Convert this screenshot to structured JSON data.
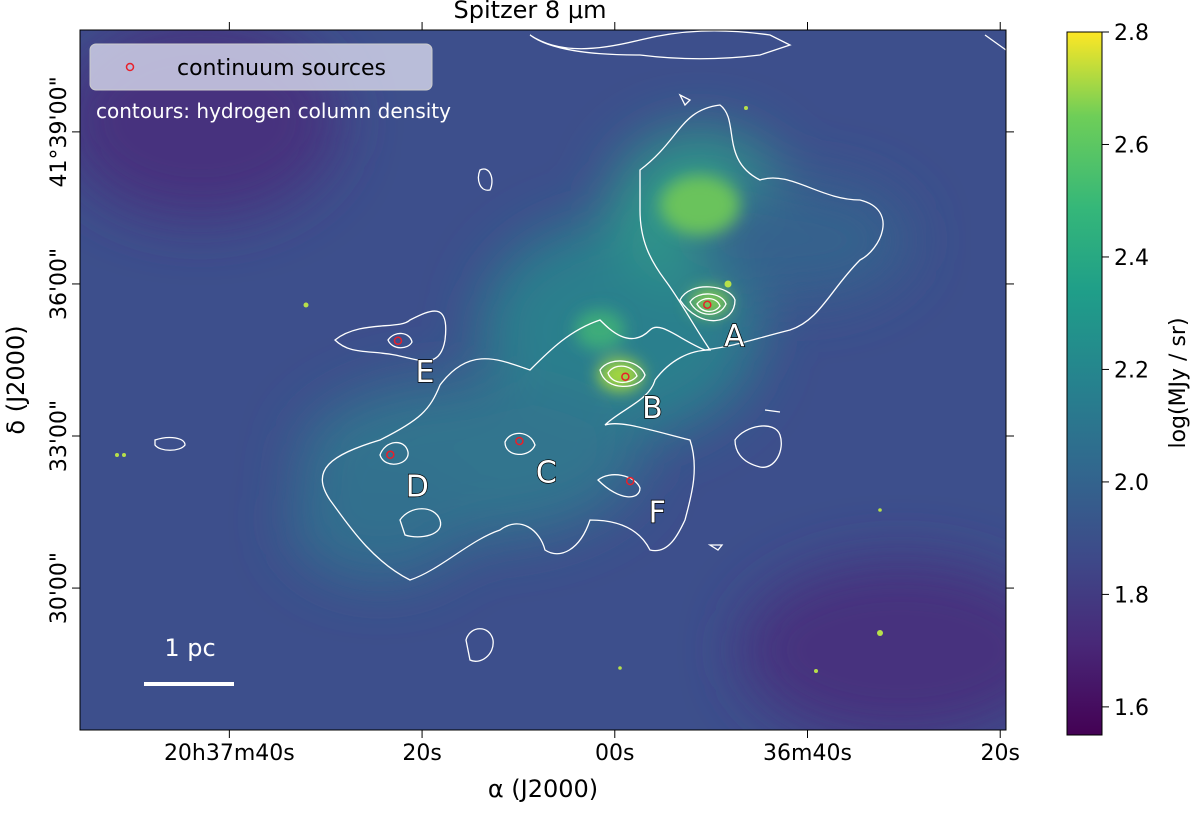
{
  "chart_data": {
    "type": "image",
    "title": "Spitzer 8 μm",
    "xlabel": "α (J2000)",
    "ylabel": "δ (J2000)",
    "xlim": [
      115.5,
      19.4
    ],
    "ylim": [
      27.2,
      41.01
    ],
    "xticks": [
      {
        "value": 100,
        "label": "20h37m40s"
      },
      {
        "value": 80,
        "label": "20s"
      },
      {
        "value": 60,
        "label": "00s"
      },
      {
        "value": 40,
        "label": "36m40s"
      },
      {
        "value": 20,
        "label": "20s"
      }
    ],
    "yticks": [
      {
        "value": 39,
        "label": "41°39'00\""
      },
      {
        "value": 36,
        "label": "36'00\""
      },
      {
        "value": 33,
        "label": "33'00\""
      },
      {
        "value": 30,
        "label": "30'00\""
      }
    ],
    "sources": {
      "name": "continuum sources",
      "color": "#e8202a",
      "x": [
        50.4,
        58.9,
        69.9,
        83.3,
        82.5,
        58.4
      ],
      "y": [
        35.59,
        34.17,
        32.9,
        32.63,
        34.88,
        32.11
      ],
      "labels": [
        "A",
        "B",
        "C",
        "D",
        "E",
        "F"
      ]
    },
    "contour_note": "contours: hydrogen column density",
    "scale_bar": "1 pc",
    "colorbar": {
      "label": "log(MJy / sr)",
      "clim": [
        1.55,
        2.8
      ],
      "ticks": [
        1.6,
        1.8,
        {
          "value": 2,
          "label": "2.0"
        },
        2.2,
        2.4,
        2.6,
        2.8
      ]
    }
  }
}
